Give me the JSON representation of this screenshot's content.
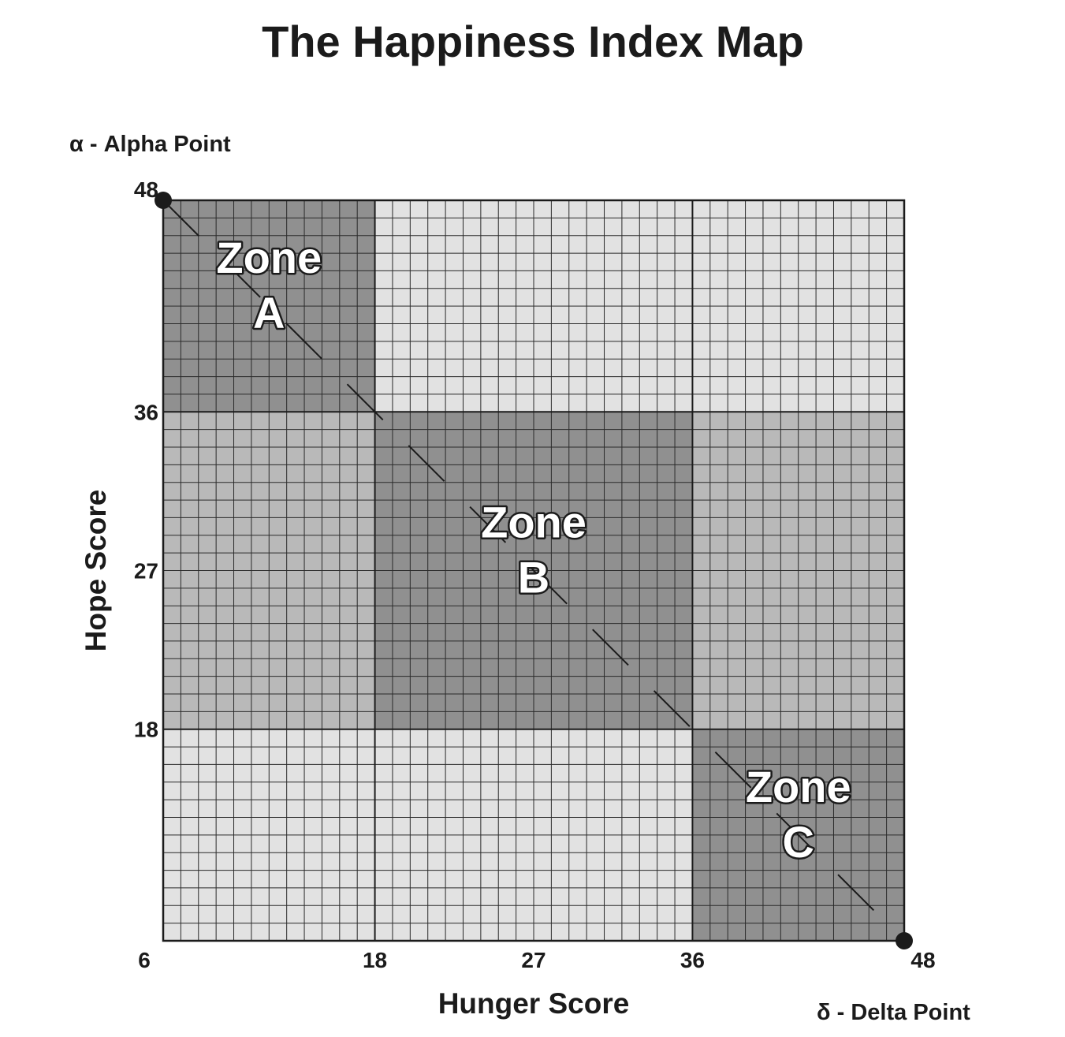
{
  "title": "The Happiness Index Map",
  "alpha_label": "α - Alpha Point",
  "delta_label": "δ - Delta Point",
  "chart_data": {
    "type": "heatmap",
    "xlabel": "Hunger Score",
    "ylabel": "Hope Score",
    "xlim": [
      6,
      48
    ],
    "ylim": [
      6,
      48
    ],
    "x_ticks": [
      {
        "value": 6,
        "label": "6"
      },
      {
        "value": 18,
        "label": "18"
      },
      {
        "value": 27,
        "label": "27"
      },
      {
        "value": 36,
        "label": "36"
      },
      {
        "value": 48,
        "label": "48"
      }
    ],
    "y_ticks": [
      {
        "value": 48,
        "label": "48"
      },
      {
        "value": 36,
        "label": "36"
      },
      {
        "value": 27,
        "label": "27"
      },
      {
        "value": 18,
        "label": "18"
      }
    ],
    "x_bands": [
      [
        6,
        18
      ],
      [
        18,
        36
      ],
      [
        36,
        48
      ]
    ],
    "y_bands": [
      [
        36,
        48
      ],
      [
        18,
        36
      ],
      [
        6,
        18
      ]
    ],
    "cell_shades": [
      [
        "dark",
        "light",
        "light"
      ],
      [
        "medium",
        "dark",
        "medium"
      ],
      [
        "light",
        "light",
        "dark"
      ]
    ],
    "shade_colors": {
      "dark": "#909090",
      "medium": "#b9b9b9",
      "light": "#e2e2e2"
    },
    "grid_step": 1,
    "zones": [
      {
        "line1": "Zone",
        "line2": "A",
        "x_range": [
          6,
          18
        ],
        "y_range": [
          36,
          48
        ]
      },
      {
        "line1": "Zone",
        "line2": "B",
        "x_range": [
          18,
          36
        ],
        "y_range": [
          18,
          36
        ]
      },
      {
        "line1": "Zone",
        "line2": "C",
        "x_range": [
          36,
          48
        ],
        "y_range": [
          6,
          18
        ]
      }
    ],
    "points": [
      {
        "name": "Alpha Point",
        "x": 6,
        "y": 48
      },
      {
        "name": "Delta Point",
        "x": 48,
        "y": 6
      }
    ]
  }
}
